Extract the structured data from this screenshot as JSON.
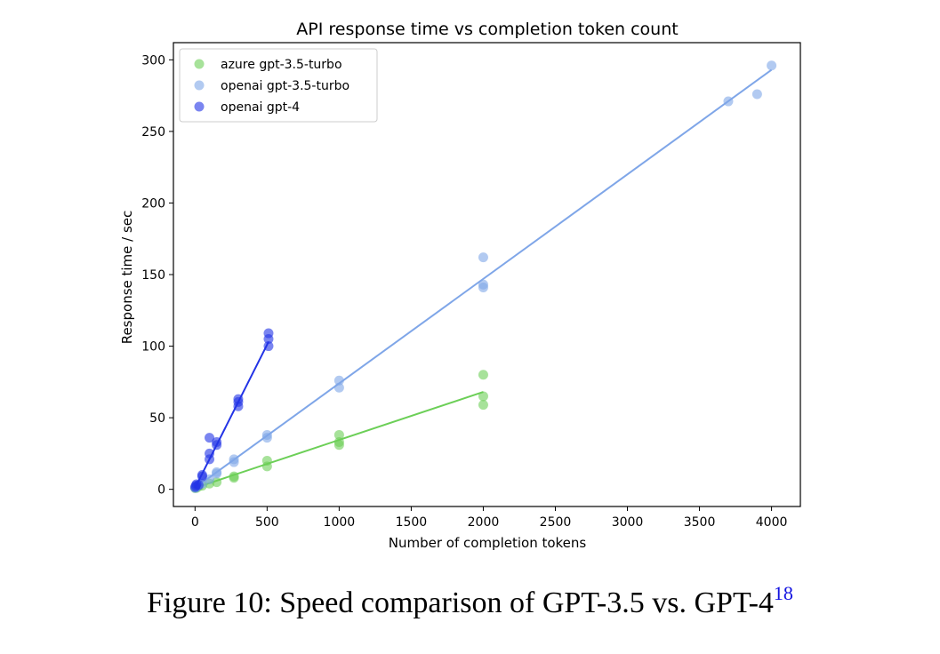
{
  "chart_data": {
    "type": "scatter",
    "title": "API response time vs completion token count",
    "xlabel": "Number of completion tokens",
    "ylabel": "Response time / sec",
    "xlim": [
      -150,
      4200
    ],
    "ylim": [
      -12,
      312
    ],
    "xticks": [
      0,
      500,
      1000,
      1500,
      2000,
      2500,
      3000,
      3500,
      4000
    ],
    "yticks": [
      0,
      50,
      100,
      150,
      200,
      250,
      300
    ],
    "legend_position": "top-left",
    "series": [
      {
        "name": "azure gpt-3.5-turbo",
        "color": "#6ccf57",
        "points": [
          {
            "x": 1,
            "y": 0.8
          },
          {
            "x": 10,
            "y": 1.0
          },
          {
            "x": 25,
            "y": 2
          },
          {
            "x": 50,
            "y": 2.5
          },
          {
            "x": 100,
            "y": 4
          },
          {
            "x": 150,
            "y": 5
          },
          {
            "x": 270,
            "y": 8
          },
          {
            "x": 270,
            "y": 9
          },
          {
            "x": 500,
            "y": 16
          },
          {
            "x": 500,
            "y": 20
          },
          {
            "x": 1000,
            "y": 31
          },
          {
            "x": 1000,
            "y": 33
          },
          {
            "x": 1000,
            "y": 38
          },
          {
            "x": 2000,
            "y": 59
          },
          {
            "x": 2000,
            "y": 65
          },
          {
            "x": 2000,
            "y": 80
          }
        ],
        "fit": [
          [
            0,
            1
          ],
          [
            2000,
            68
          ]
        ]
      },
      {
        "name": "openai gpt-3.5-turbo",
        "color": "#7fa6e8",
        "points": [
          {
            "x": 1,
            "y": 1
          },
          {
            "x": 10,
            "y": 1.5
          },
          {
            "x": 25,
            "y": 3
          },
          {
            "x": 50,
            "y": 4
          },
          {
            "x": 100,
            "y": 7
          },
          {
            "x": 150,
            "y": 11
          },
          {
            "x": 150,
            "y": 12
          },
          {
            "x": 270,
            "y": 19
          },
          {
            "x": 270,
            "y": 21
          },
          {
            "x": 500,
            "y": 36
          },
          {
            "x": 500,
            "y": 38
          },
          {
            "x": 1000,
            "y": 71
          },
          {
            "x": 1000,
            "y": 76
          },
          {
            "x": 2000,
            "y": 141
          },
          {
            "x": 2000,
            "y": 143
          },
          {
            "x": 2000,
            "y": 162
          },
          {
            "x": 3700,
            "y": 271
          },
          {
            "x": 3900,
            "y": 276
          },
          {
            "x": 4000,
            "y": 296
          }
        ],
        "fit": [
          [
            0,
            1
          ],
          [
            4000,
            293
          ]
        ]
      },
      {
        "name": "openai gpt-4",
        "color": "#2233e6",
        "points": [
          {
            "x": 1,
            "y": 1.5
          },
          {
            "x": 5,
            "y": 2.5
          },
          {
            "x": 10,
            "y": 3.5
          },
          {
            "x": 25,
            "y": 3
          },
          {
            "x": 50,
            "y": 9
          },
          {
            "x": 50,
            "y": 10
          },
          {
            "x": 100,
            "y": 21
          },
          {
            "x": 100,
            "y": 25
          },
          {
            "x": 100,
            "y": 36
          },
          {
            "x": 150,
            "y": 31
          },
          {
            "x": 150,
            "y": 33
          },
          {
            "x": 300,
            "y": 58
          },
          {
            "x": 300,
            "y": 61
          },
          {
            "x": 300,
            "y": 63
          },
          {
            "x": 510,
            "y": 100
          },
          {
            "x": 510,
            "y": 105
          },
          {
            "x": 510,
            "y": 109
          }
        ],
        "fit": [
          [
            0,
            1
          ],
          [
            510,
            103
          ]
        ]
      }
    ]
  },
  "caption": {
    "text": "Figure 10: Speed comparison of GPT-3.5 vs. GPT-4",
    "footnote": "18"
  }
}
